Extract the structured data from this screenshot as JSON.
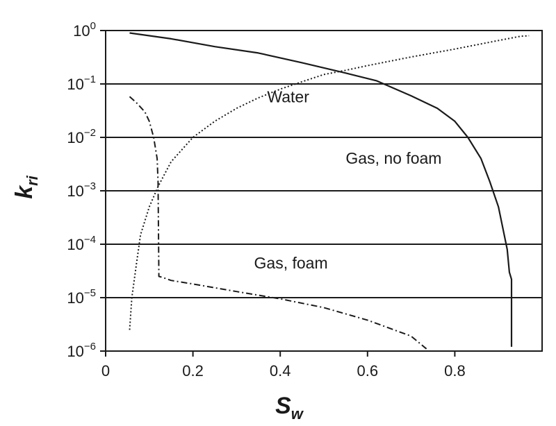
{
  "chart_data": {
    "type": "line",
    "title": "",
    "xlabel": {
      "main": "S",
      "sub": "w"
    },
    "ylabel": {
      "main": "k",
      "sub": "ri"
    },
    "xlim": [
      0,
      1.0
    ],
    "ylim": [
      1e-06,
      1
    ],
    "yscale": "log",
    "grid": "horizontal",
    "x_ticks": [
      {
        "value": 0,
        "label": "0"
      },
      {
        "value": 0.2,
        "label": "0.2"
      },
      {
        "value": 0.4,
        "label": "0.4"
      },
      {
        "value": 0.6,
        "label": "0.6"
      },
      {
        "value": 0.8,
        "label": "0.8"
      }
    ],
    "y_ticks": [
      {
        "value": 1,
        "base": "10",
        "exp": "0"
      },
      {
        "value": 0.1,
        "base": "10",
        "exp": "−1"
      },
      {
        "value": 0.01,
        "base": "10",
        "exp": "−2"
      },
      {
        "value": 0.001,
        "base": "10",
        "exp": "−3"
      },
      {
        "value": 0.0001,
        "base": "10",
        "exp": "−4"
      },
      {
        "value": 1e-05,
        "base": "10",
        "exp": "−5"
      },
      {
        "value": 1e-06,
        "base": "10",
        "exp": "−6"
      }
    ],
    "series": [
      {
        "name": "Gas, no foam",
        "style": "solid",
        "color": "#1a1a1a",
        "x": [
          0.055,
          0.15,
          0.25,
          0.35,
          0.45,
          0.55,
          0.62,
          0.7,
          0.76,
          0.8,
          0.83,
          0.86,
          0.88,
          0.9,
          0.91,
          0.92,
          0.925,
          0.93,
          0.93
        ],
        "y": [
          0.9,
          0.7,
          0.5,
          0.38,
          0.25,
          0.16,
          0.115,
          0.06,
          0.035,
          0.02,
          0.01,
          0.004,
          0.0015,
          0.0005,
          0.0002,
          8e-05,
          3e-05,
          2.2e-05,
          1.2e-06
        ]
      },
      {
        "name": "Water",
        "style": "dotted",
        "color": "#1a1a1a",
        "x": [
          0.055,
          0.06,
          0.07,
          0.08,
          0.1,
          0.12,
          0.15,
          0.2,
          0.25,
          0.3,
          0.35,
          0.4,
          0.45,
          0.5,
          0.55,
          0.6,
          0.7,
          0.8,
          0.9,
          0.95,
          0.97
        ],
        "y": [
          2.5e-06,
          1e-05,
          4e-05,
          0.00015,
          0.0005,
          0.0012,
          0.0035,
          0.01,
          0.02,
          0.035,
          0.055,
          0.08,
          0.11,
          0.15,
          0.18,
          0.22,
          0.32,
          0.45,
          0.65,
          0.78,
          0.8
        ]
      },
      {
        "name": "Gas, foam",
        "style": "dashdot",
        "color": "#1a1a1a",
        "x": [
          0.055,
          0.07,
          0.09,
          0.1,
          0.11,
          0.118,
          0.12,
          0.122,
          0.13,
          0.15,
          0.2,
          0.3,
          0.4,
          0.5,
          0.6,
          0.7,
          0.735
        ],
        "y": [
          0.058,
          0.045,
          0.03,
          0.02,
          0.01,
          0.004,
          0.0015,
          2.5e-05,
          2.4e-05,
          2.1e-05,
          1.8e-05,
          1.3e-05,
          9.5e-06,
          6.5e-06,
          3.8e-06,
          1.9e-06,
          1.1e-06
        ]
      }
    ],
    "annotations": [
      {
        "text": "Water",
        "x": 0.37,
        "y": 0.045
      },
      {
        "text": "Gas, no foam",
        "x": 0.55,
        "y": 0.0032
      },
      {
        "text": "Gas, foam",
        "x": 0.34,
        "y": 3.5e-05
      }
    ]
  }
}
